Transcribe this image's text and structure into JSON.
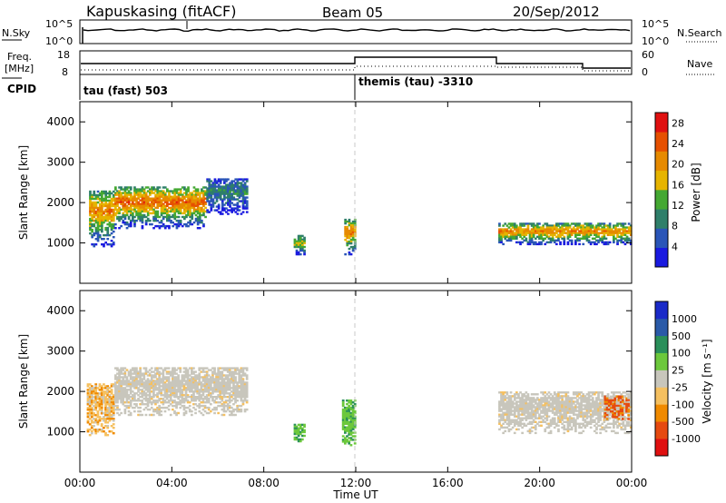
{
  "header": {
    "title": "Kapuskasing (fitACF)",
    "beam": "Beam 05",
    "date": "20/Sep/2012"
  },
  "top_panel": {
    "left_label": "N.Sky",
    "left_ticks": [
      "10^5",
      "10^0"
    ],
    "right_label": "N.Search",
    "right_ticks": [
      "10^5",
      "10^0"
    ]
  },
  "freq_panel": {
    "left_label_1": "Freq.",
    "left_label_2": "[MHz]",
    "left_ticks": [
      "18",
      "8"
    ],
    "right_label": "Nave",
    "right_ticks": [
      "60",
      "0"
    ]
  },
  "cpid": {
    "label": "CPID",
    "segment_1": "tau (fast) 503",
    "segment_2": "themis (tau)  -3310"
  },
  "colors": {
    "power_scale": [
      "#1a1ae0",
      "#2a55b8",
      "#2f7f6a",
      "#44a832",
      "#e6b400",
      "#e68a00",
      "#e65000",
      "#e01010"
    ],
    "velocity_scale": [
      "#e01010",
      "#e64a10",
      "#f08a00",
      "#f5c060",
      "#c8c6bc",
      "#6cc83c",
      "#2a8f5a",
      "#2a5aa8",
      "#1a2ac8"
    ],
    "dashed_line": "#c8c8c8"
  },
  "chart_data": [
    {
      "type": "heatmap",
      "title": "",
      "xlabel": "Time UT",
      "ylabel": "Slant Range [km]",
      "x_ticks": [
        "00:00",
        "04:00",
        "08:00",
        "12:00",
        "16:00",
        "20:00",
        "00:00"
      ],
      "xlim": [
        0,
        24
      ],
      "y_ticks": [
        "1000",
        "2000",
        "3000",
        "4000"
      ],
      "ylim": [
        0,
        4500
      ],
      "colorbar_label": "Power [dB]",
      "colorbar_ticks": [
        "4",
        "8",
        "12",
        "16",
        "20",
        "24",
        "28"
      ],
      "colorbar_range": [
        0,
        30
      ],
      "regions": [
        {
          "t_start": 0.4,
          "t_end": 1.5,
          "r_low": 900,
          "r_high": 2300,
          "peak_db": 22
        },
        {
          "t_start": 1.5,
          "t_end": 5.5,
          "r_low": 1350,
          "r_high": 2400,
          "peak_db": 24
        },
        {
          "t_start": 5.5,
          "t_end": 7.3,
          "r_low": 1700,
          "r_high": 2600,
          "peak_db": 10
        },
        {
          "t_start": 9.3,
          "t_end": 9.8,
          "r_low": 700,
          "r_high": 1200,
          "peak_db": 16
        },
        {
          "t_start": 11.5,
          "t_end": 12.0,
          "r_low": 700,
          "r_high": 1600,
          "peak_db": 22
        },
        {
          "t_start": 18.2,
          "t_end": 24.0,
          "r_low": 950,
          "r_high": 1500,
          "peak_db": 22
        }
      ]
    },
    {
      "type": "heatmap",
      "title": "",
      "xlabel": "Time UT",
      "ylabel": "Slant Range [km]",
      "x_ticks": [
        "00:00",
        "04:00",
        "08:00",
        "12:00",
        "16:00",
        "20:00",
        "00:00"
      ],
      "xlim": [
        0,
        24
      ],
      "y_ticks": [
        "1000",
        "2000",
        "3000",
        "4000"
      ],
      "ylim": [
        0,
        4500
      ],
      "colorbar_label": "Velocity [m s⁻¹]",
      "colorbar_ticks": [
        "1000",
        "500",
        "100",
        "25",
        "-25",
        "-100",
        "-500",
        "-1000"
      ],
      "regions": [
        {
          "t_start": 0.3,
          "t_end": 1.5,
          "r_low": 900,
          "r_high": 2200,
          "velocity": -25
        },
        {
          "t_start": 1.5,
          "t_end": 7.3,
          "r_low": 1400,
          "r_high": 2600,
          "velocity": 0
        },
        {
          "t_start": 9.3,
          "t_end": 9.8,
          "r_low": 700,
          "r_high": 1200,
          "velocity": 100
        },
        {
          "t_start": 11.4,
          "t_end": 12.0,
          "r_low": 650,
          "r_high": 1800,
          "velocity": 100
        },
        {
          "t_start": 18.2,
          "t_end": 24.0,
          "r_low": 950,
          "r_high": 2000,
          "velocity": 0
        },
        {
          "t_start": 22.8,
          "t_end": 23.9,
          "r_low": 1300,
          "r_high": 1900,
          "velocity": -300
        }
      ]
    }
  ]
}
